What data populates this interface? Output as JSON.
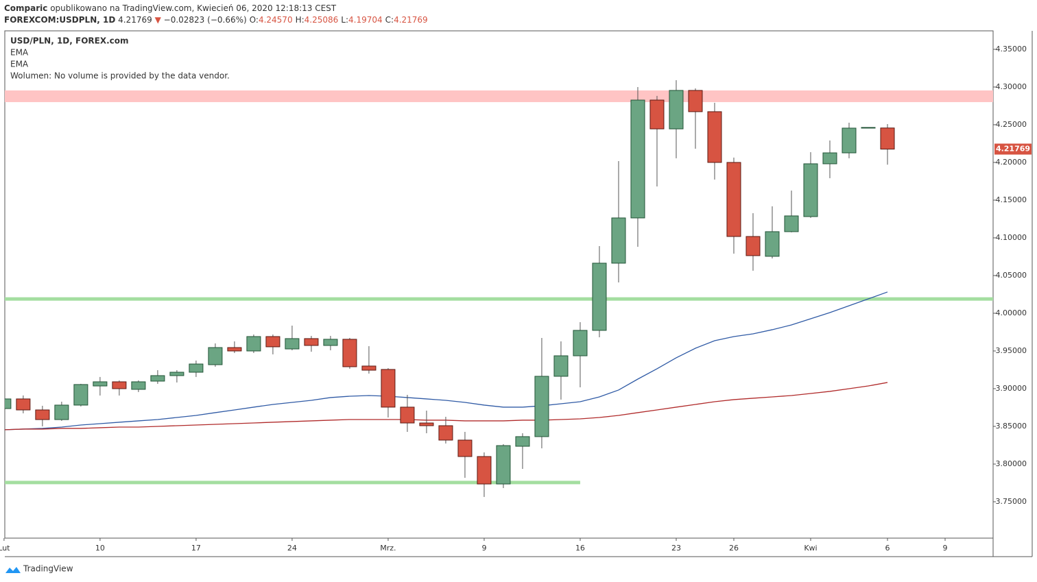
{
  "header": {
    "author": "Comparic",
    "published": "opublikowano na TradingView.com, Kwiecień 06, 2020 12:18:13 CEST",
    "symbol": "FOREXCOM:USDPLN, 1D",
    "price": "4.21769",
    "arrow": "▼",
    "change": "−0.02823 (−0.66%)",
    "ohlc": [
      {
        "key": "O:",
        "value": "4.24570"
      },
      {
        "key": "H:",
        "value": "4.25086"
      },
      {
        "key": "L:",
        "value": "4.19704"
      },
      {
        "key": "C:",
        "value": "4.21769"
      }
    ]
  },
  "footer": {
    "brand": "TradingView"
  },
  "chart_data": {
    "type": "candlestick",
    "legend_title": "USD/PLN, 1D, FOREX.com",
    "note": "Wolumen: No volume is provided by the data vendor.",
    "price_label": "4.21769",
    "up_color": "#6ba583",
    "down_color": "#d75442",
    "open": [
      3.8736,
      3.8864,
      3.8718,
      3.859,
      3.8782,
      3.9036,
      3.9091,
      3.8991,
      3.91,
      3.9173,
      3.9218,
      3.9318,
      3.9545,
      3.95,
      3.9691,
      3.9527,
      3.9664,
      3.9573,
      3.9655,
      3.93,
      3.9255,
      3.8755,
      3.8545,
      3.8509,
      3.8318,
      3.81,
      3.7736,
      3.8236,
      3.8364,
      3.9164,
      3.9436,
      3.9773,
      4.0664,
      4.1264,
      4.2827,
      4.2445,
      4.2955,
      4.2673,
      4.2,
      4.1018,
      4.0755,
      4.1082,
      4.1282,
      4.1982,
      4.2127,
      4.2455,
      4.2457
    ],
    "high": [
      3.888,
      3.891,
      3.8773,
      3.8827,
      3.9064,
      3.9155,
      3.9109,
      3.911,
      3.9245,
      3.9245,
      3.9373,
      3.96,
      3.9627,
      3.9718,
      3.9718,
      3.9836,
      3.97,
      3.97,
      3.9673,
      3.9564,
      3.9273,
      3.8918,
      3.8709,
      3.8627,
      3.8427,
      3.8155,
      3.8264,
      3.8409,
      3.9673,
      3.9627,
      3.9882,
      4.0891,
      4.2018,
      4.3,
      4.2882,
      4.3091,
      4.2982,
      4.2791,
      4.2064,
      4.1327,
      4.1418,
      4.1627,
      4.2136,
      4.2291,
      4.2527,
      4.2464,
      4.25086
    ],
    "low": [
      3.87,
      3.8673,
      3.85,
      3.8573,
      3.8764,
      3.8909,
      3.8909,
      3.8955,
      3.9064,
      3.9082,
      3.9155,
      3.9291,
      3.9473,
      3.9473,
      3.9455,
      3.9509,
      3.949,
      3.9509,
      3.9264,
      3.92,
      3.8618,
      3.8427,
      3.8409,
      3.8273,
      3.7818,
      3.7564,
      3.7682,
      3.7936,
      3.8209,
      3.8855,
      3.9018,
      3.9682,
      4.0409,
      4.0882,
      4.1682,
      4.2055,
      4.2182,
      4.1773,
      4.0791,
      4.0564,
      4.0727,
      4.1073,
      4.1264,
      4.1791,
      4.2055,
      4.2455,
      4.19704
    ],
    "close": [
      3.8864,
      3.8718,
      3.859,
      3.8782,
      3.9055,
      3.9091,
      3.9,
      3.9091,
      3.9173,
      3.9218,
      3.9327,
      3.9545,
      3.95,
      3.9691,
      3.9555,
      3.9664,
      3.9573,
      3.9655,
      3.9291,
      3.9245,
      3.8755,
      3.8545,
      3.8509,
      3.8318,
      3.81,
      3.7736,
      3.8245,
      3.8364,
      3.9164,
      3.9436,
      3.9773,
      4.0664,
      4.1264,
      4.2827,
      4.2445,
      4.2955,
      4.2673,
      4.2,
      4.1018,
      4.0764,
      4.1082,
      4.1291,
      4.1982,
      4.2127,
      4.2455,
      4.2464,
      4.21769
    ],
    "series": [
      {
        "name": "EMA",
        "color": "#2f5aa5",
        "values": [
          3.8455,
          3.8464,
          3.8473,
          3.8491,
          3.8518,
          3.8536,
          3.8555,
          3.8573,
          3.8591,
          3.8618,
          3.8645,
          3.8682,
          3.8718,
          3.8755,
          3.8791,
          3.8818,
          3.8845,
          3.8882,
          3.89,
          3.8909,
          3.89,
          3.8882,
          3.8864,
          3.8845,
          3.8818,
          3.8782,
          3.8755,
          3.8755,
          3.8773,
          3.88,
          3.8827,
          3.8891,
          3.8982,
          3.9127,
          3.9264,
          3.9409,
          3.9536,
          3.9636,
          3.9691,
          3.9727,
          3.9782,
          3.9845,
          3.9927,
          4.0009,
          4.01,
          4.0191,
          4.0282
        ]
      },
      {
        "name": "EMA",
        "color": "#b02a2a",
        "values": [
          3.8455,
          3.8464,
          3.8464,
          3.8473,
          3.8473,
          3.8482,
          3.8491,
          3.8491,
          3.85,
          3.8509,
          3.8518,
          3.8527,
          3.8536,
          3.8545,
          3.8555,
          3.8564,
          3.8573,
          3.8582,
          3.8591,
          3.8591,
          3.8591,
          3.8591,
          3.8582,
          3.8582,
          3.8573,
          3.8573,
          3.8573,
          3.8582,
          3.8582,
          3.8591,
          3.86,
          3.8618,
          3.8645,
          3.8682,
          3.8718,
          3.8755,
          3.8791,
          3.8827,
          3.8855,
          3.8873,
          3.8891,
          3.8909,
          3.8936,
          3.8964,
          3.9,
          3.9036,
          3.9082
        ]
      }
    ],
    "zones": [
      {
        "from": 4.28,
        "to": 4.2955,
        "color": "#ffc4c4"
      }
    ],
    "levels": [
      {
        "value": 4.019,
        "color": "#a4dea0"
      },
      {
        "value": 3.7755,
        "color": "#a4dea0",
        "xrange": [
          0,
          30
        ]
      }
    ],
    "xlim": [
      0.04,
      51.5
    ],
    "ylim": [
      3.7018,
      4.3745
    ],
    "xticks": [
      {
        "value": 0,
        "label": "Lut"
      },
      {
        "value": 5,
        "label": "10"
      },
      {
        "value": 10,
        "label": "17"
      },
      {
        "value": 15,
        "label": "24"
      },
      {
        "value": 20,
        "label": "Mrz."
      },
      {
        "value": 25,
        "label": "9"
      },
      {
        "value": 30,
        "label": "16"
      },
      {
        "value": 35,
        "label": "23"
      },
      {
        "value": 38,
        "label": "26"
      },
      {
        "value": 42,
        "label": "Kwi"
      },
      {
        "value": 46,
        "label": "6"
      },
      {
        "value": 49,
        "label": "9"
      }
    ],
    "yticks": [
      {
        "value": 3.75,
        "label": "3.75000"
      },
      {
        "value": 3.8,
        "label": "3.80000"
      },
      {
        "value": 3.85,
        "label": "3.85000"
      },
      {
        "value": 3.9,
        "label": "3.90000"
      },
      {
        "value": 3.95,
        "label": "3.95000"
      },
      {
        "value": 4,
        "label": "4.00000"
      },
      {
        "value": 4.05,
        "label": "4.05000"
      },
      {
        "value": 4.1,
        "label": "4.10000"
      },
      {
        "value": 4.15,
        "label": "4.15000"
      },
      {
        "value": 4.2,
        "label": "4.20000"
      },
      {
        "value": 4.25,
        "label": "4.25000"
      },
      {
        "value": 4.3,
        "label": "4.30000"
      },
      {
        "value": 4.35,
        "label": "4.35000"
      }
    ]
  }
}
